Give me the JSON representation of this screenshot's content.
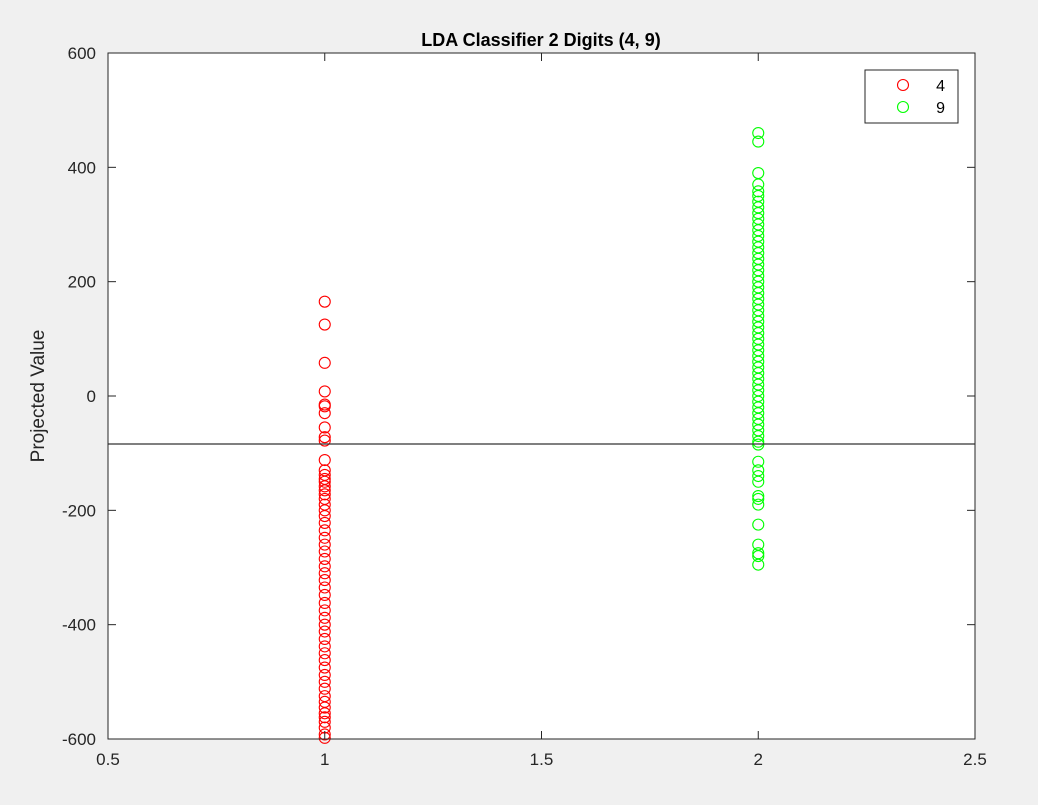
{
  "chart_data": {
    "type": "scatter",
    "title": "LDA Classifier 2 Digits (4, 9)",
    "xlabel": "",
    "ylabel": "Projected Value",
    "xlim": [
      0.5,
      2.5
    ],
    "ylim": [
      -600,
      600
    ],
    "xticks": [
      0.5,
      1,
      1.5,
      2,
      2.5
    ],
    "yticks": [
      -600,
      -400,
      -200,
      0,
      200,
      400,
      600
    ],
    "xtick_labels": [
      "0.5",
      "1",
      "1.5",
      "2",
      "2.5"
    ],
    "ytick_labels": [
      "-600",
      "-400",
      "-200",
      "0",
      "200",
      "400",
      "600"
    ],
    "grid": false,
    "legend_position": "top-right",
    "marker": "open-circle",
    "threshold": {
      "y": -84,
      "color": "#333333"
    },
    "series": [
      {
        "name": "4",
        "color": "#ff0000",
        "x": 1,
        "values": [
          165,
          125,
          58,
          8,
          -15,
          -18,
          -30,
          -55,
          -72,
          -78,
          -112,
          -130,
          -138,
          -145,
          -150,
          -158,
          -165,
          -172,
          -180,
          -190,
          -200,
          -210,
          -222,
          -235,
          -248,
          -260,
          -272,
          -285,
          -298,
          -310,
          -322,
          -335,
          -348,
          -362,
          -375,
          -388,
          -400,
          -412,
          -425,
          -438,
          -450,
          -462,
          -475,
          -488,
          -500,
          -512,
          -525,
          -535,
          -545,
          -555,
          -562,
          -570,
          -580,
          -592,
          -598
        ]
      },
      {
        "name": "9",
        "color": "#00ff00",
        "x": 2,
        "values": [
          460,
          445,
          390,
          370,
          358,
          350,
          340,
          330,
          320,
          310,
          300,
          290,
          280,
          270,
          260,
          250,
          240,
          230,
          220,
          210,
          200,
          190,
          180,
          170,
          160,
          150,
          140,
          130,
          120,
          110,
          100,
          90,
          80,
          70,
          60,
          50,
          40,
          30,
          20,
          10,
          0,
          -10,
          -20,
          -30,
          -40,
          -50,
          -60,
          -70,
          -80,
          -85,
          -115,
          -130,
          -140,
          -150,
          -175,
          -180,
          -190,
          -225,
          -260,
          -275,
          -280,
          -295
        ]
      }
    ]
  }
}
